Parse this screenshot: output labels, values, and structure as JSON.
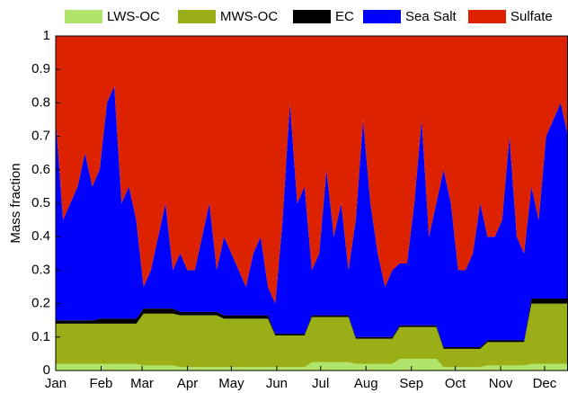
{
  "chart_data": {
    "type": "stacked_area",
    "ylabel": "Mass fraction",
    "xlim": [
      0,
      350
    ],
    "xticks": [
      {
        "value": 0,
        "label": "Jan"
      },
      {
        "value": 31,
        "label": "Feb"
      },
      {
        "value": 59,
        "label": "Mar"
      },
      {
        "value": 90,
        "label": "Apr"
      },
      {
        "value": 120,
        "label": "May"
      },
      {
        "value": 151,
        "label": "Jun"
      },
      {
        "value": 181,
        "label": "Jul"
      },
      {
        "value": 212,
        "label": "Aug"
      },
      {
        "value": 243,
        "label": "Sep"
      },
      {
        "value": 273,
        "label": "Oct"
      },
      {
        "value": 304,
        "label": "Nov"
      },
      {
        "value": 334,
        "label": "Dec"
      }
    ],
    "ylim": [
      0,
      1
    ],
    "yticks": [
      0,
      0.1,
      0.2,
      0.3,
      0.4,
      0.5,
      0.6,
      0.7,
      0.8,
      0.9,
      1
    ],
    "x": [
      0,
      5,
      10,
      15,
      20,
      25,
      30,
      35,
      40,
      45,
      50,
      55,
      60,
      65,
      70,
      75,
      80,
      85,
      90,
      95,
      100,
      105,
      110,
      115,
      120,
      125,
      130,
      135,
      140,
      145,
      150,
      155,
      160,
      165,
      170,
      175,
      180,
      185,
      190,
      195,
      200,
      205,
      210,
      215,
      220,
      225,
      230,
      235,
      240,
      245,
      250,
      255,
      260,
      265,
      270,
      275,
      280,
      285,
      290,
      295,
      300,
      305,
      310,
      315,
      320,
      325,
      330,
      335,
      340,
      345,
      350
    ],
    "series": [
      {
        "name": "LWS-OC",
        "color": "#b0e46a",
        "values": [
          0.02,
          0.02,
          0.02,
          0.02,
          0.02,
          0.02,
          0.02,
          0.02,
          0.02,
          0.02,
          0.02,
          0.02,
          0.015,
          0.015,
          0.015,
          0.015,
          0.015,
          0.01,
          0.01,
          0.01,
          0.01,
          0.01,
          0.01,
          0.01,
          0.01,
          0.01,
          0.01,
          0.01,
          0.01,
          0.01,
          0.01,
          0.01,
          0.01,
          0.01,
          0.01,
          0.025,
          0.025,
          0.025,
          0.025,
          0.025,
          0.025,
          0.02,
          0.02,
          0.02,
          0.02,
          0.02,
          0.02,
          0.035,
          0.035,
          0.035,
          0.035,
          0.035,
          0.035,
          0.01,
          0.01,
          0.01,
          0.01,
          0.01,
          0.01,
          0.015,
          0.015,
          0.015,
          0.015,
          0.015,
          0.015,
          0.02,
          0.02,
          0.02,
          0.02,
          0.02,
          0.02
        ]
      },
      {
        "name": "MWS-OC",
        "color": "#9aae18",
        "values": [
          0.12,
          0.12,
          0.12,
          0.12,
          0.12,
          0.12,
          0.12,
          0.12,
          0.12,
          0.12,
          0.12,
          0.12,
          0.155,
          0.155,
          0.155,
          0.155,
          0.155,
          0.155,
          0.155,
          0.155,
          0.155,
          0.155,
          0.155,
          0.145,
          0.145,
          0.145,
          0.145,
          0.145,
          0.145,
          0.145,
          0.095,
          0.095,
          0.095,
          0.095,
          0.095,
          0.135,
          0.135,
          0.135,
          0.135,
          0.135,
          0.135,
          0.075,
          0.075,
          0.075,
          0.075,
          0.075,
          0.075,
          0.095,
          0.095,
          0.095,
          0.095,
          0.095,
          0.095,
          0.055,
          0.055,
          0.055,
          0.055,
          0.055,
          0.055,
          0.07,
          0.07,
          0.07,
          0.07,
          0.07,
          0.07,
          0.18,
          0.18,
          0.18,
          0.18,
          0.18,
          0.18
        ]
      },
      {
        "name": "EC",
        "color": "#000000",
        "values": [
          0.01,
          0.01,
          0.01,
          0.01,
          0.01,
          0.01,
          0.015,
          0.015,
          0.015,
          0.015,
          0.015,
          0.015,
          0.015,
          0.015,
          0.015,
          0.015,
          0.015,
          0.01,
          0.01,
          0.01,
          0.01,
          0.01,
          0.01,
          0.01,
          0.01,
          0.01,
          0.01,
          0.01,
          0.01,
          0.01,
          0.005,
          0.005,
          0.005,
          0.005,
          0.005,
          0.005,
          0.005,
          0.005,
          0.005,
          0.005,
          0.005,
          0.005,
          0.005,
          0.005,
          0.005,
          0.005,
          0.005,
          0.005,
          0.005,
          0.005,
          0.005,
          0.005,
          0.005,
          0.005,
          0.005,
          0.005,
          0.005,
          0.005,
          0.005,
          0.005,
          0.005,
          0.005,
          0.005,
          0.005,
          0.005,
          0.015,
          0.015,
          0.015,
          0.015,
          0.015,
          0.015
        ]
      },
      {
        "name": "Sea Salt",
        "color": "#0000ff",
        "values": [
          0.6,
          0.3,
          0.35,
          0.4,
          0.5,
          0.4,
          0.445,
          0.645,
          0.695,
          0.345,
          0.395,
          0.295,
          0.065,
          0.115,
          0.215,
          0.315,
          0.115,
          0.175,
          0.125,
          0.125,
          0.225,
          0.325,
          0.125,
          0.235,
          0.185,
          0.135,
          0.085,
          0.185,
          0.235,
          0.085,
          0.09,
          0.34,
          0.69,
          0.39,
          0.44,
          0.135,
          0.185,
          0.435,
          0.235,
          0.335,
          0.135,
          0.35,
          0.65,
          0.4,
          0.25,
          0.15,
          0.2,
          0.185,
          0.185,
          0.365,
          0.615,
          0.265,
          0.365,
          0.53,
          0.43,
          0.23,
          0.23,
          0.28,
          0.43,
          0.31,
          0.31,
          0.36,
          0.61,
          0.31,
          0.26,
          0.335,
          0.235,
          0.485,
          0.535,
          0.585,
          0.485
        ]
      },
      {
        "name": "Sulfate",
        "color": "#dd2200",
        "values": [
          0.25,
          0.55,
          0.5,
          0.45,
          0.35,
          0.45,
          0.4,
          0.2,
          0.15,
          0.5,
          0.45,
          0.55,
          0.75,
          0.7,
          0.6,
          0.5,
          0.7,
          0.65,
          0.7,
          0.7,
          0.6,
          0.5,
          0.7,
          0.6,
          0.65,
          0.7,
          0.75,
          0.65,
          0.6,
          0.75,
          0.8,
          0.55,
          0.2,
          0.5,
          0.45,
          0.7,
          0.65,
          0.4,
          0.6,
          0.5,
          0.7,
          0.55,
          0.25,
          0.5,
          0.65,
          0.75,
          0.7,
          0.68,
          0.68,
          0.5,
          0.25,
          0.6,
          0.5,
          0.4,
          0.5,
          0.7,
          0.7,
          0.65,
          0.5,
          0.6,
          0.6,
          0.55,
          0.3,
          0.6,
          0.65,
          0.45,
          0.55,
          0.3,
          0.25,
          0.2,
          0.3
        ]
      }
    ]
  }
}
